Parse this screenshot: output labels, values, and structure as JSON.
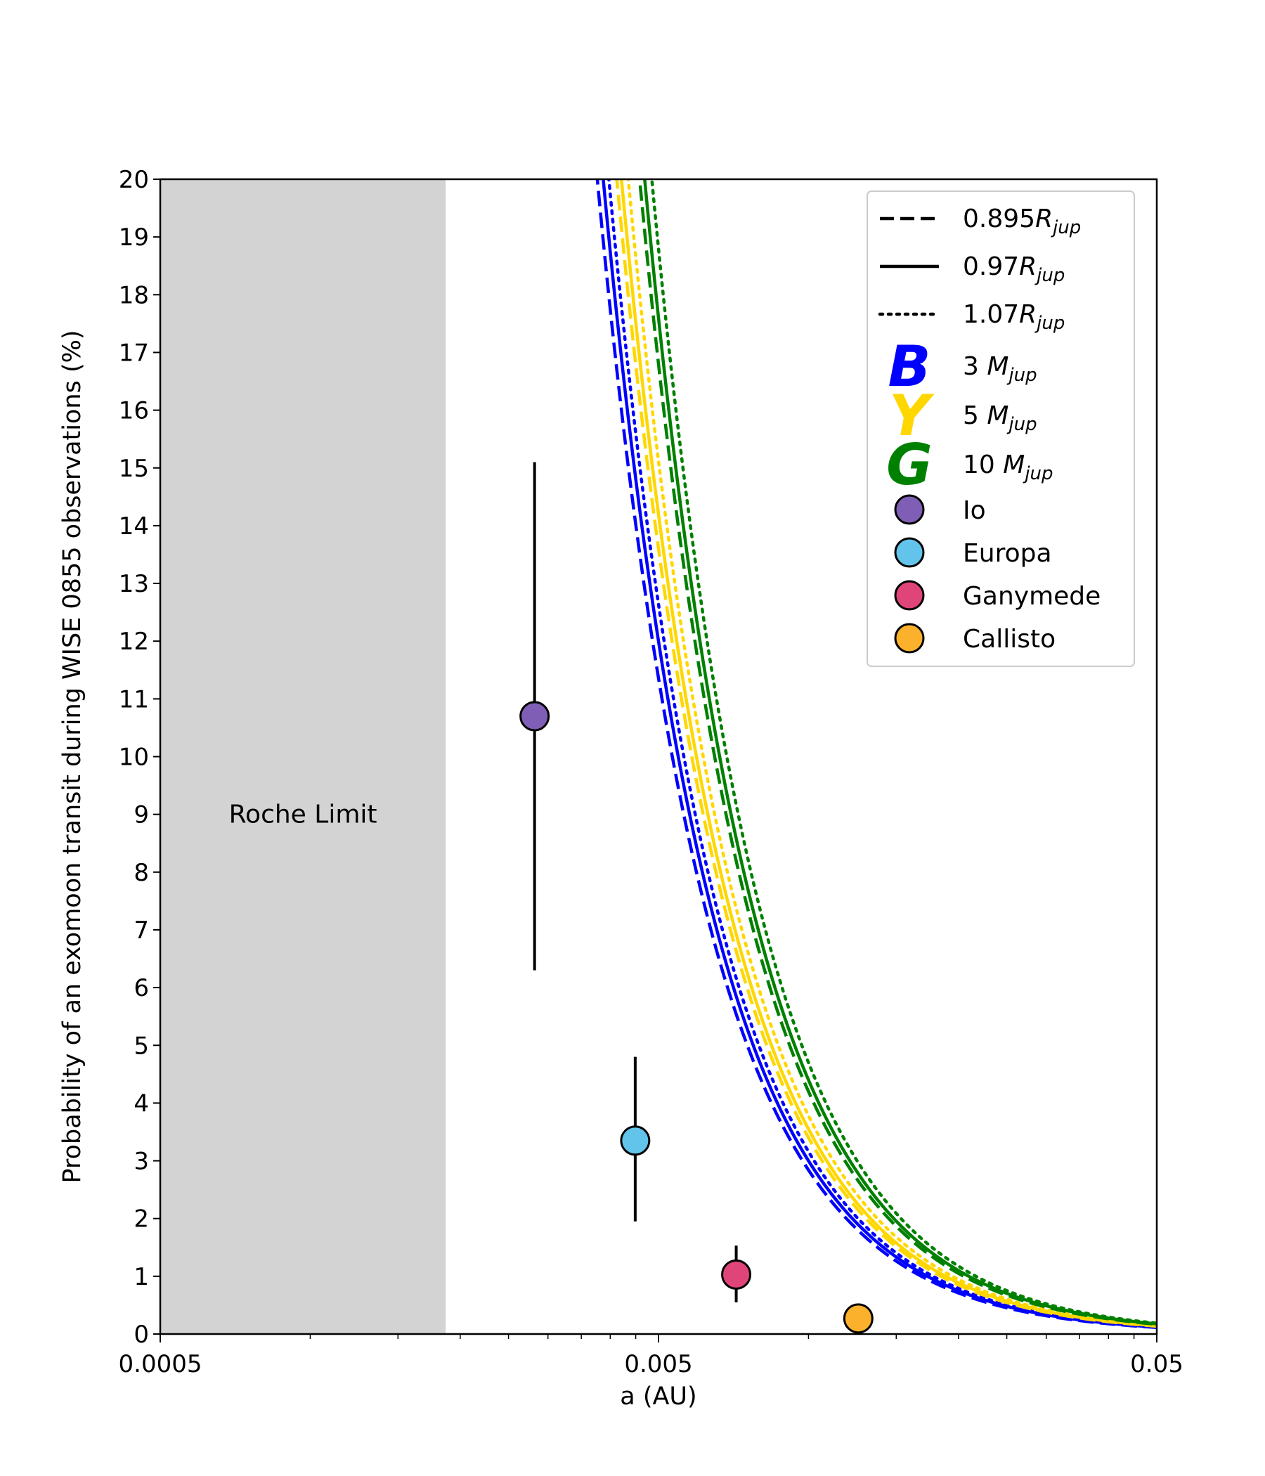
{
  "chart_data": {
    "type": "line",
    "xscale": "log",
    "xlabel": "a (AU)",
    "ylabel": "Probability of an exomoon transit during WISE 0855 observations (%)",
    "xlim": [
      0.0005,
      0.05
    ],
    "ylim": [
      0,
      20
    ],
    "x_ticks": [
      {
        "value": 0.0005,
        "label": "0.0005"
      },
      {
        "value": 0.005,
        "label": "0.005"
      },
      {
        "value": 0.05,
        "label": "0.05"
      }
    ],
    "y_ticks": [
      "0",
      "1",
      "2",
      "3",
      "4",
      "5",
      "6",
      "7",
      "8",
      "9",
      "10",
      "11",
      "12",
      "13",
      "14",
      "15",
      "16",
      "17",
      "18",
      "19",
      "20"
    ],
    "shaded_region": {
      "label": "Roche Limit",
      "x_start": 0.0005,
      "x_end": 0.00187,
      "color": "#d3d3d3"
    },
    "model": {
      "form": "P = k / a^2",
      "k_units": "% AU^2"
    },
    "series": [
      {
        "name": "3 Mjup, 0.895Rjup",
        "mass": "B",
        "radius": "0.895",
        "color": "#0000ff",
        "style": "dashed",
        "k": 0.000284
      },
      {
        "name": "3 Mjup, 0.97Rjup",
        "mass": "B",
        "radius": "0.97",
        "color": "#0000ff",
        "style": "solid",
        "k": 0.0003
      },
      {
        "name": "3 Mjup, 1.07Rjup",
        "mass": "B",
        "radius": "1.07",
        "color": "#0000ff",
        "style": "dotted",
        "k": 0.000316
      },
      {
        "name": "5 Mjup, 0.895Rjup",
        "mass": "Y",
        "radius": "0.895",
        "color": "#ffd700",
        "style": "dashed",
        "k": 0.00034
      },
      {
        "name": "5 Mjup, 0.97Rjup",
        "mass": "Y",
        "radius": "0.97",
        "color": "#ffd700",
        "style": "solid",
        "k": 0.000355
      },
      {
        "name": "5 Mjup, 1.07Rjup",
        "mass": "Y",
        "radius": "1.07",
        "color": "#ffd700",
        "style": "dotted",
        "k": 0.000378
      },
      {
        "name": "10 Mjup, 0.895Rjup",
        "mass": "G",
        "radius": "0.895",
        "color": "#008000",
        "style": "dashed",
        "k": 0.00042
      },
      {
        "name": "10 Mjup, 0.97Rjup",
        "mass": "G",
        "radius": "0.97",
        "color": "#008000",
        "style": "solid",
        "k": 0.00044
      },
      {
        "name": "10 Mjup, 1.07Rjup",
        "mass": "G",
        "radius": "1.07",
        "color": "#008000",
        "style": "dotted",
        "k": 0.00047
      }
    ],
    "moons": [
      {
        "name": "Io",
        "a": 0.00282,
        "p": 10.7,
        "err_low": 6.3,
        "err_high": 15.1,
        "color": "#7f5fb5"
      },
      {
        "name": "Europa",
        "a": 0.00449,
        "p": 3.35,
        "err_low": 1.95,
        "err_high": 4.8,
        "color": "#62c4ea"
      },
      {
        "name": "Ganymede",
        "a": 0.00716,
        "p": 1.03,
        "err_low": 0.55,
        "err_high": 1.53,
        "color": "#e0457a"
      },
      {
        "name": "Callisto",
        "a": 0.01259,
        "p": 0.27,
        "err_low": 0.25,
        "err_high": 0.29,
        "color": "#fbb12c"
      }
    ],
    "legend": {
      "placement": "top-right",
      "line_entries": [
        {
          "style": "dashed",
          "prefix": "0.895",
          "main": "R",
          "sub": "jup"
        },
        {
          "style": "solid",
          "prefix": "0.97",
          "main": "R",
          "sub": "jup"
        },
        {
          "style": "dotted",
          "prefix": "1.07",
          "main": "R",
          "sub": "jup"
        }
      ],
      "mass_entries": [
        {
          "letter": "B",
          "color": "#0000ff",
          "prefix": "3 ",
          "main": "M",
          "sub": "jup"
        },
        {
          "letter": "Y",
          "color": "#ffd700",
          "prefix": "5 ",
          "main": "M",
          "sub": "jup"
        },
        {
          "letter": "G",
          "color": "#008000",
          "prefix": "10 ",
          "main": "M",
          "sub": "jup"
        }
      ],
      "moon_entries": [
        {
          "label": "Io",
          "color": "#7f5fb5"
        },
        {
          "label": "Europa",
          "color": "#62c4ea"
        },
        {
          "label": "Ganymede",
          "color": "#e0457a"
        },
        {
          "label": "Callisto",
          "color": "#fbb12c"
        }
      ]
    }
  }
}
